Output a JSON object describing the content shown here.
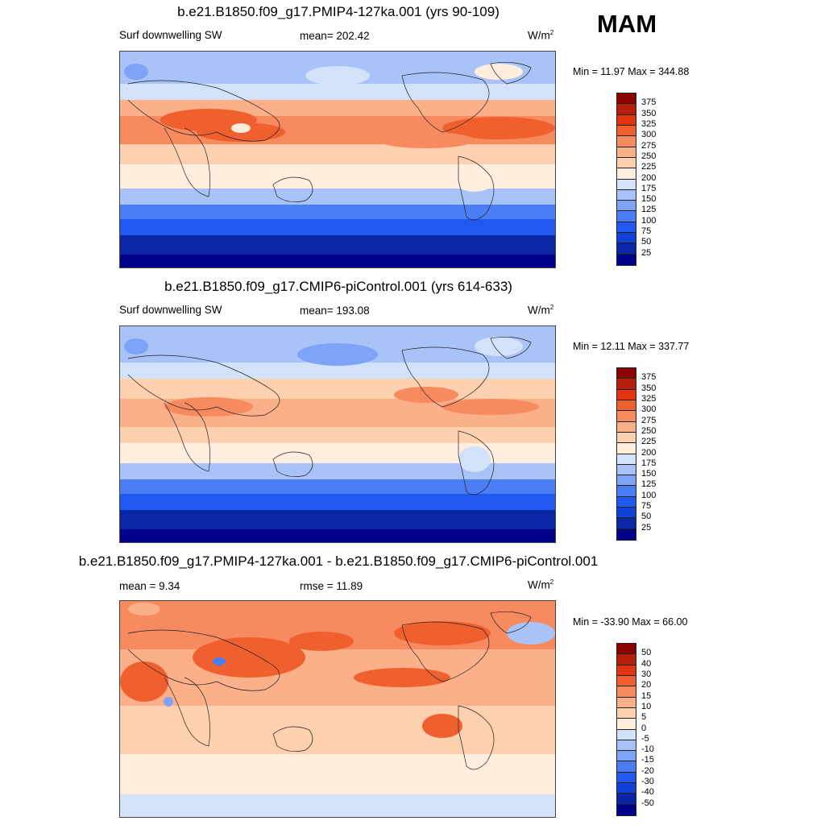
{
  "season": "MAM",
  "units_main": "W/m",
  "units_sup": "2",
  "panels": [
    {
      "title": "b.e21.B1850.f09_g17.PMIP4-127ka.001 (yrs 90-109)",
      "left_label": "Surf downwelling SW",
      "stat_label": "mean= 202.42",
      "minmax": "Min =  11.97 Max = 344.88"
    },
    {
      "title": "b.e21.B1850.f09_g17.CMIP6-piControl.001 (yrs 614-633)",
      "left_label": "Surf downwelling SW",
      "stat_label": "mean= 193.08",
      "minmax": "Min =  12.11 Max = 337.77"
    },
    {
      "title": "b.e21.B1850.f09_g17.PMIP4-127ka.001 - b.e21.B1850.f09_g17.CMIP6-piControl.001",
      "left_label": "mean =   9.34",
      "stat_label": "rmse =  11.89",
      "minmax": "Min = -33.90 Max =  66.00"
    }
  ],
  "chart_data": [
    {
      "type": "heatmap",
      "title": "b.e21.B1850.f09_g17.PMIP4-127ka.001 (yrs 90-109)",
      "variable": "Surf downwelling SW",
      "units": "W/m2",
      "mean": 202.42,
      "min": 11.97,
      "max": 344.88,
      "colorbar_levels": [
        25,
        50,
        75,
        100,
        125,
        150,
        175,
        200,
        225,
        250,
        275,
        300,
        325,
        350,
        375
      ]
    },
    {
      "type": "heatmap",
      "title": "b.e21.B1850.f09_g17.CMIP6-piControl.001 (yrs 614-633)",
      "variable": "Surf downwelling SW",
      "units": "W/m2",
      "mean": 193.08,
      "min": 12.11,
      "max": 337.77,
      "colorbar_levels": [
        25,
        50,
        75,
        100,
        125,
        150,
        175,
        200,
        225,
        250,
        275,
        300,
        325,
        350,
        375
      ]
    },
    {
      "type": "heatmap",
      "title": "b.e21.B1850.f09_g17.PMIP4-127ka.001 - b.e21.B1850.f09_g17.CMIP6-piControl.001",
      "units": "W/m2",
      "mean": 9.34,
      "rmse": 11.89,
      "min": -33.9,
      "max": 66.0,
      "colorbar_levels": [
        -50,
        -40,
        -30,
        -20,
        -15,
        -10,
        -5,
        0,
        5,
        10,
        15,
        20,
        30,
        40,
        50
      ]
    }
  ],
  "colors": {
    "abs_scale": [
      "#00008b",
      "#0a25a6",
      "#1040d8",
      "#2059f0",
      "#4b7ef5",
      "#7ea3f7",
      "#a9c3f9",
      "#d2e2fb",
      "#ffeedd",
      "#fdd0b0",
      "#fbb08a",
      "#f78a5e",
      "#f0602f",
      "#e03510",
      "#b51e0b",
      "#8b0000"
    ],
    "diff_scale": [
      "#00008b",
      "#0a25a6",
      "#1040d8",
      "#2059f0",
      "#4b7ef5",
      "#7ea3f7",
      "#a9c3f9",
      "#d2e2fb",
      "#ffeedd",
      "#fdd0b0",
      "#fbb08a",
      "#f78a5e",
      "#f0602f",
      "#e03510",
      "#b51e0b",
      "#8b0000"
    ]
  }
}
